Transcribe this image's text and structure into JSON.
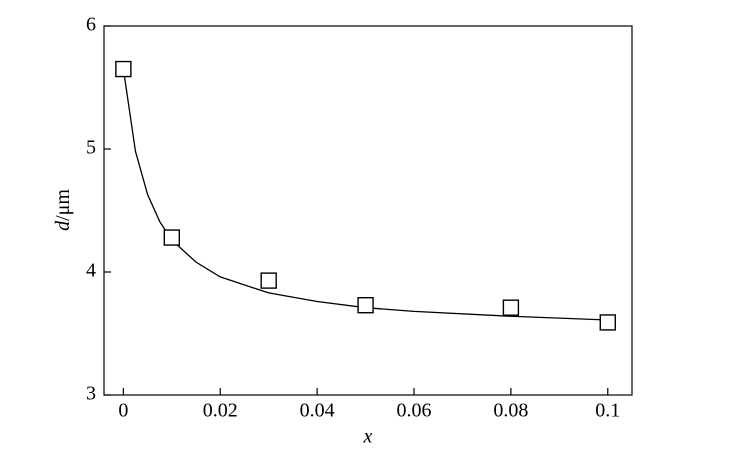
{
  "chart_data": {
    "type": "scatter",
    "x_label": "x",
    "y_label_var": "d",
    "y_label_unit": "/μm",
    "x": [
      0,
      0.01,
      0.03,
      0.05,
      0.08,
      0.1
    ],
    "values": [
      5.65,
      4.28,
      3.93,
      3.73,
      3.71,
      3.59
    ],
    "color": "#000000",
    "fit": {
      "x": [
        0,
        0.0025,
        0.005,
        0.0075,
        0.01,
        0.015,
        0.02,
        0.03,
        0.04,
        0.05,
        0.06,
        0.08,
        0.1
      ],
      "values": [
        5.65,
        4.98,
        4.63,
        4.41,
        4.26,
        4.08,
        3.96,
        3.83,
        3.76,
        3.71,
        3.68,
        3.64,
        3.61
      ]
    },
    "xlim": [
      -0.004,
      0.105
    ],
    "ylim": [
      3,
      6
    ],
    "xticks": [
      0,
      0.02,
      0.04,
      0.06,
      0.08,
      0.1
    ],
    "yticks": [
      3,
      4,
      5,
      6
    ]
  }
}
